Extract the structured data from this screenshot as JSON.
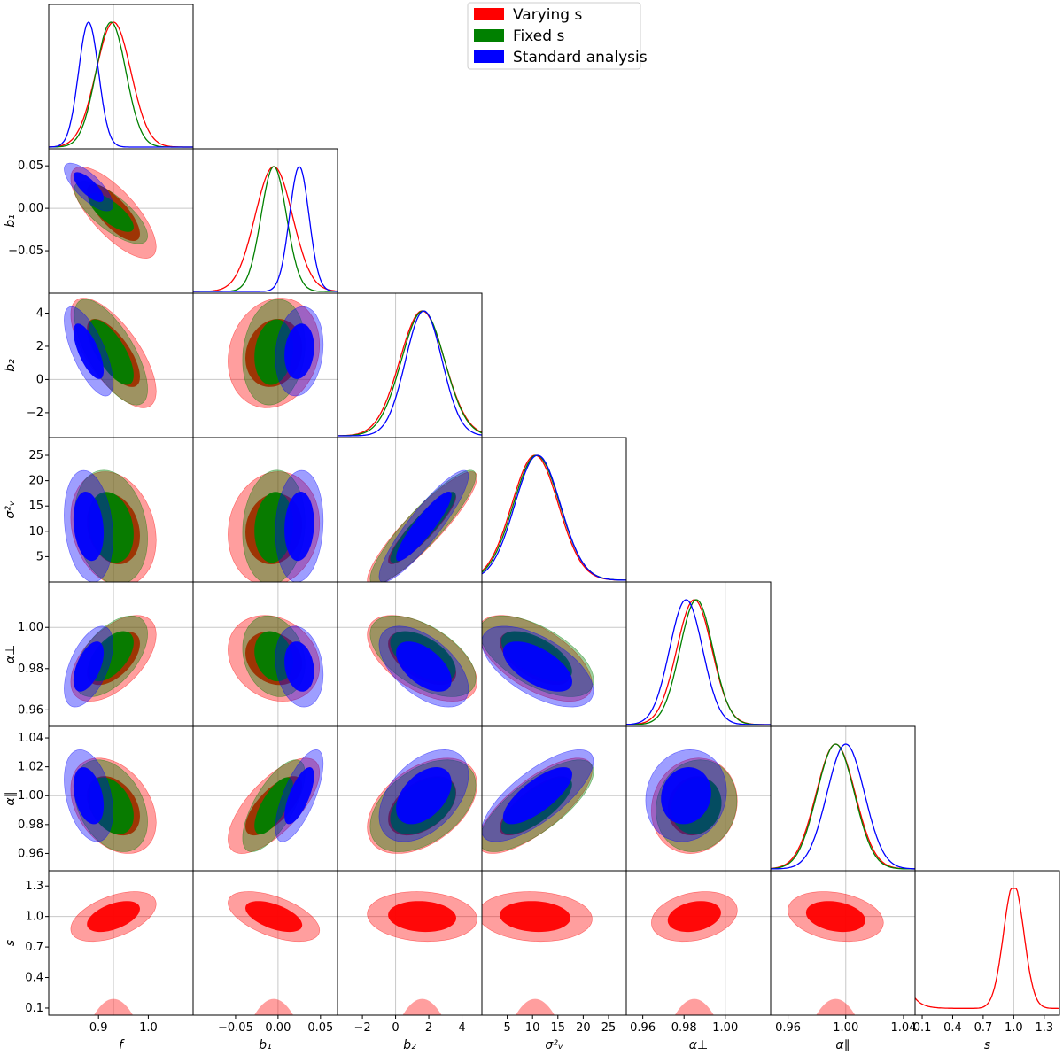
{
  "chart_data": {
    "type": "corner",
    "parameters": [
      {
        "id": "f",
        "label": "f",
        "range": [
          0.8,
          1.09
        ],
        "ticks": [
          0.9,
          1.0
        ],
        "tick_labels": [
          "0.9",
          "1.0"
        ],
        "marker": 0.93
      },
      {
        "id": "b1",
        "label": "b₁",
        "range": [
          -0.1,
          0.07
        ],
        "ticks": [
          -0.05,
          0.0,
          0.05
        ],
        "tick_labels": [
          "−0.05",
          "0.00",
          "0.05"
        ],
        "marker": 0.0
      },
      {
        "id": "b2",
        "label": "b₂",
        "range": [
          -3.5,
          5.2
        ],
        "ticks": [
          -2,
          0,
          2,
          4
        ],
        "tick_labels": [
          "−2",
          "0",
          "2",
          "4"
        ],
        "marker": 0.0
      },
      {
        "id": "sv2",
        "label": "σ²ᵥ",
        "range": [
          0.0,
          28.5
        ],
        "ticks": [
          5,
          10,
          15,
          20,
          25
        ],
        "tick_labels": [
          "5",
          "10",
          "15",
          "20",
          "25"
        ],
        "marker": null
      },
      {
        "id": "aperp",
        "label": "α⊥",
        "range": [
          0.952,
          1.022
        ],
        "ticks": [
          0.96,
          0.98,
          1.0
        ],
        "tick_labels": [
          "0.96",
          "0.98",
          "1.00"
        ],
        "marker": 1.0
      },
      {
        "id": "apar",
        "label": "α∥",
        "range": [
          0.948,
          1.048
        ],
        "ticks": [
          0.96,
          0.98,
          1.0,
          1.02,
          1.04
        ],
        "tick_labels": [
          "0.96",
          "0.98",
          "1.00",
          "1.02",
          "1.04"
        ],
        "marker": 1.0
      },
      {
        "id": "s",
        "label": "s",
        "range": [
          0.03,
          1.45
        ],
        "ticks": [
          0.1,
          0.4,
          0.7,
          1.0,
          1.3
        ],
        "tick_labels": [
          "0.1",
          "0.4",
          "0.7",
          "1.0",
          "1.3"
        ],
        "marker": 1.0
      }
    ],
    "bottom_tick_labels": [
      [
        "0.9",
        "1.0"
      ],
      [
        "−0.05",
        "0.00",
        "0.05"
      ],
      [
        "−2",
        "0",
        "2",
        "4"
      ],
      [
        "5",
        "10",
        "15",
        "20",
        "25"
      ],
      [
        "0.96",
        "0.98",
        "1.00"
      ],
      [
        "0.96",
        "1.00",
        "1.04"
      ],
      [
        "0.1",
        "0.4",
        "0.7",
        "1.0",
        "1.3"
      ]
    ],
    "series": [
      {
        "name": "Varying s",
        "color": "#ff0000",
        "mean": {
          "f": 0.93,
          "b1": -0.005,
          "b2": 1.6,
          "sv2": 10.5,
          "aperp": 0.985,
          "apar": 0.993,
          "s": 1.0
        },
        "sigma": {
          "f": 0.035,
          "b1": 0.022,
          "b2": 1.35,
          "sv2": 4.6,
          "aperp": 0.0085,
          "apar": 0.0135,
          "s": 0.1
        }
      },
      {
        "name": "Fixed s",
        "color": "#008000",
        "mean": {
          "f": 0.925,
          "b1": -0.005,
          "b2": 1.65,
          "sv2": 10.8,
          "aperp": 0.986,
          "apar": 0.993
        },
        "sigma": {
          "f": 0.03,
          "b1": 0.015,
          "b2": 1.3,
          "sv2": 4.6,
          "aperp": 0.008,
          "apar": 0.013
        }
      },
      {
        "name": "Standard analysis",
        "color": "#0000ff",
        "mean": {
          "f": 0.88,
          "b1": 0.025,
          "b2": 1.7,
          "sv2": 11.0,
          "aperp": 0.981,
          "apar": 1.0
        },
        "sigma": {
          "f": 0.02,
          "b1": 0.0115,
          "b2": 1.1,
          "sv2": 4.5,
          "aperp": 0.008,
          "apar": 0.013
        }
      }
    ],
    "legend": {
      "placement": "top-center",
      "entries": [
        "Varying s",
        "Fixed s",
        "Standard analysis"
      ]
    },
    "contour_levels": [
      "68%",
      "95%"
    ]
  }
}
